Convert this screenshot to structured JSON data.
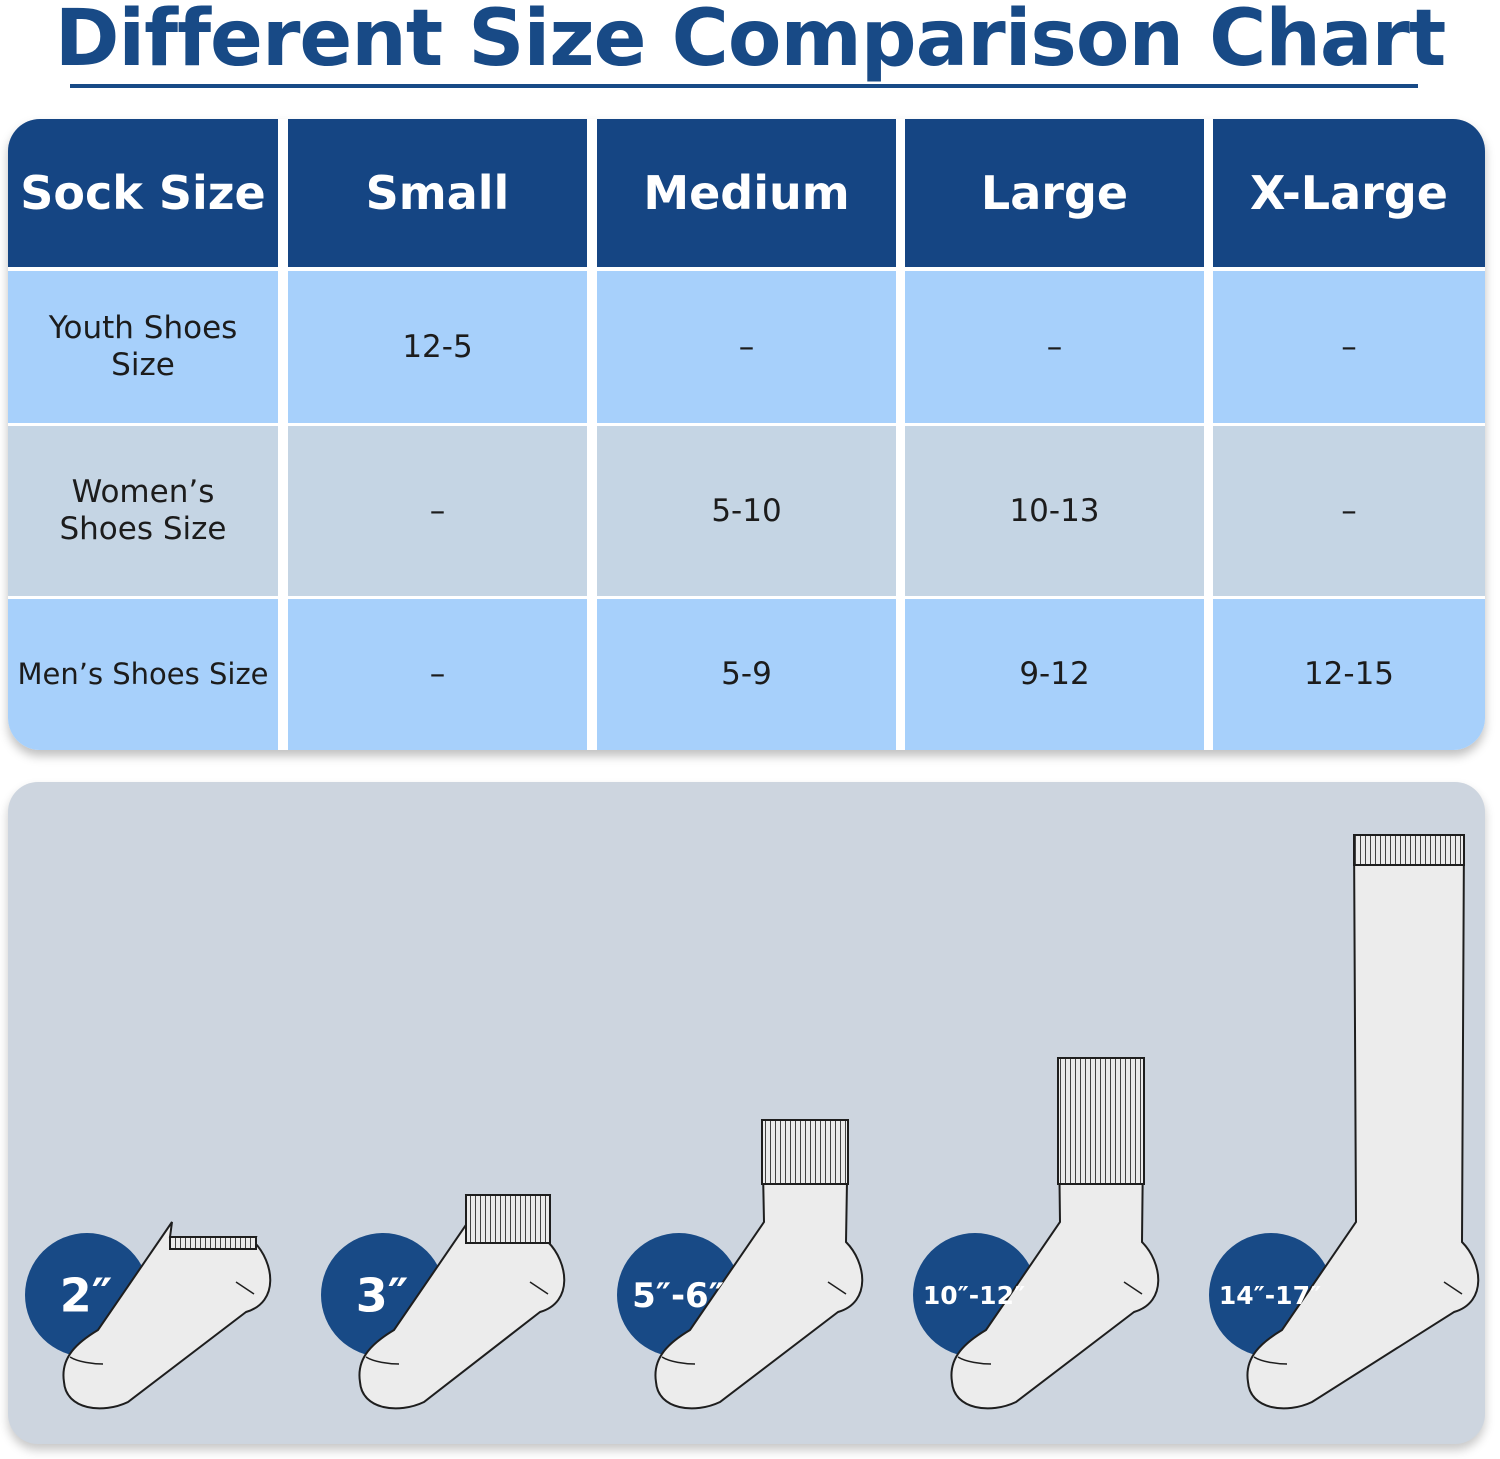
{
  "title": "Different Size Comparison Chart",
  "chart_data": {
    "type": "table",
    "columns": [
      "Sock Size",
      "Small",
      "Medium",
      "Large",
      "X-Large"
    ],
    "rows": [
      {
        "label": "Youth Shoes Size",
        "values": [
          "12-5",
          "–",
          "–",
          "–"
        ]
      },
      {
        "label": "Women’s Shoes Size",
        "values": [
          "–",
          "5-10",
          "10-13",
          "–"
        ]
      },
      {
        "label": "Men’s Shoes Size",
        "values": [
          "–",
          "5-9",
          "9-12",
          "12-15"
        ]
      }
    ]
  },
  "sock_heights": [
    {
      "label": "2″"
    },
    {
      "label": "3″"
    },
    {
      "label": "5″-6″"
    },
    {
      "label": "10″-12″"
    },
    {
      "label": "14″-17″"
    }
  ],
  "colors": {
    "header": "#154583",
    "row_blue": "#a7d0fb",
    "row_grey": "#c5d5e4",
    "panel": "#cdd5df",
    "badge": "#184a86",
    "sock_fill": "#ececec"
  }
}
